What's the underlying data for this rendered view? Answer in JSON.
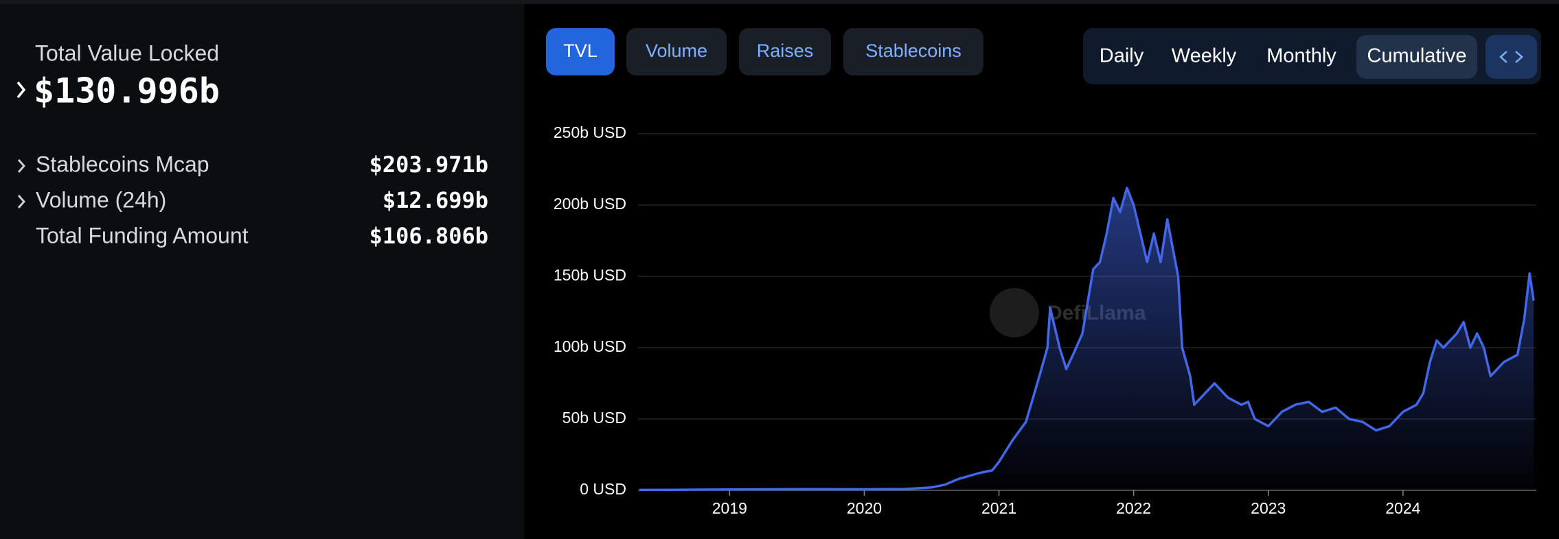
{
  "sidebar": {
    "tvl_label": "Total Value Locked",
    "tvl_value": "$130.996b",
    "rows": [
      {
        "label": "Stablecoins Mcap",
        "value": "$203.971b"
      },
      {
        "label": "Volume (24h)",
        "value": "$12.699b"
      },
      {
        "label": "Total Funding Amount",
        "value": "$106.806b"
      }
    ]
  },
  "tabs": [
    "TVL",
    "Volume",
    "Raises",
    "Stablecoins"
  ],
  "periods": [
    "Daily",
    "Weekly",
    "Monthly",
    "Cumulative"
  ],
  "chart_data": {
    "type": "area",
    "watermark": "DefiLlama",
    "color": "#4267e8",
    "grid": true,
    "x": [
      2018.33,
      2018.6,
      2019.0,
      2019.5,
      2020.0,
      2020.3,
      2020.5,
      2020.6,
      2020.7,
      2020.85,
      2020.95,
      2021.0,
      2021.1,
      2021.2,
      2021.3,
      2021.36,
      2021.38,
      2021.45,
      2021.5,
      2021.55,
      2021.62,
      2021.7,
      2021.75,
      2021.8,
      2021.85,
      2021.9,
      2021.95,
      2022.0,
      2022.05,
      2022.1,
      2022.15,
      2022.2,
      2022.25,
      2022.3,
      2022.33,
      2022.36,
      2022.42,
      2022.45,
      2022.55,
      2022.6,
      2022.7,
      2022.8,
      2022.85,
      2022.9,
      2023.0,
      2023.1,
      2023.2,
      2023.3,
      2023.4,
      2023.5,
      2023.6,
      2023.7,
      2023.8,
      2023.9,
      2024.0,
      2024.1,
      2024.15,
      2024.2,
      2024.25,
      2024.3,
      2024.4,
      2024.45,
      2024.5,
      2024.55,
      2024.6,
      2024.65,
      2024.75,
      2024.85,
      2024.9,
      2024.94,
      2024.97
    ],
    "values": [
      0.3,
      0.4,
      0.6,
      0.8,
      0.7,
      0.9,
      2,
      4,
      8,
      12,
      14,
      20,
      35,
      48,
      80,
      100,
      128,
      100,
      85,
      95,
      110,
      155,
      160,
      180,
      205,
      195,
      212,
      200,
      180,
      160,
      180,
      160,
      190,
      165,
      150,
      100,
      80,
      60,
      70,
      75,
      65,
      60,
      62,
      50,
      45,
      55,
      60,
      62,
      55,
      58,
      50,
      48,
      42,
      45,
      55,
      60,
      68,
      90,
      105,
      100,
      110,
      118,
      100,
      110,
      100,
      80,
      90,
      95,
      120,
      152,
      133
    ],
    "xlim": [
      2018.32,
      2024.99
    ],
    "ylim": [
      0,
      250
    ],
    "xticks": [
      2019,
      2020,
      2021,
      2022,
      2023,
      2024
    ],
    "yticks": [
      {
        "value": 0,
        "label": "0 USD"
      },
      {
        "value": 50,
        "label": "50b USD"
      },
      {
        "value": 100,
        "label": "100b USD"
      },
      {
        "value": 150,
        "label": "150b USD"
      },
      {
        "value": 200,
        "label": "200b USD"
      },
      {
        "value": 250,
        "label": "250b USD"
      }
    ]
  }
}
